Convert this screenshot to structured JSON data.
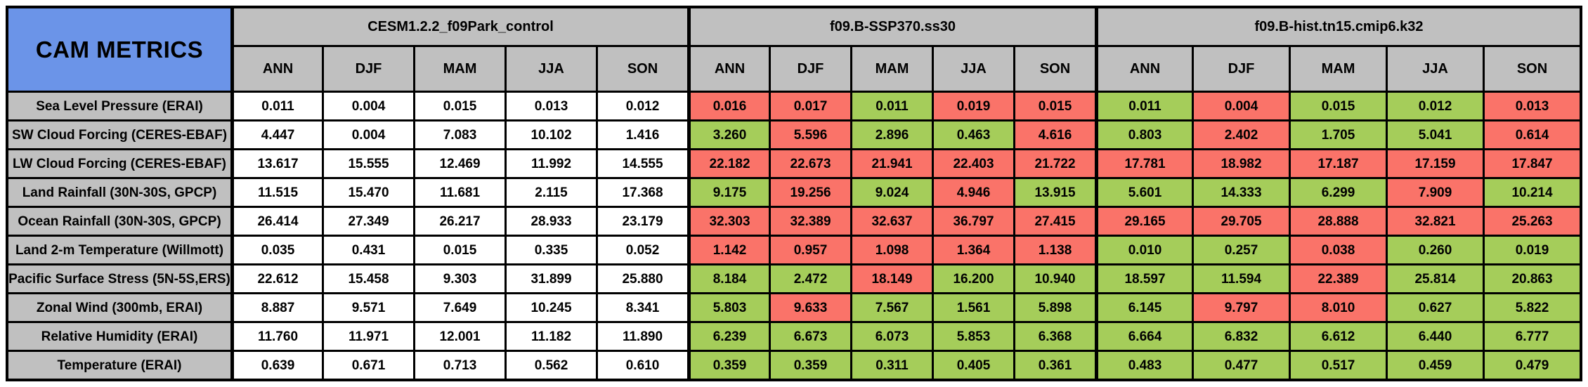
{
  "colors": {
    "title_bg": "#6B94E8",
    "header_bg": "#C0C0C0",
    "label_bg": "#C0C0C0",
    "neutral_cell": "#FFFFFF",
    "green_cell": "#A5CD5A",
    "red_cell": "#FA7369",
    "border": "#000000"
  },
  "chart_data": {
    "type": "table",
    "title": "CAM METRICS",
    "column_groups": [
      "CESM1.2.2_f09Park_control",
      "f09.B-SSP370.ss30",
      "f09.B-hist.tn15.cmip6.k32"
    ],
    "season_columns": [
      "ANN",
      "DJF",
      "MAM",
      "JJA",
      "SON"
    ],
    "cell_color_codes": {
      "w": "white",
      "g": "green",
      "r": "red"
    },
    "rows": [
      {
        "label": "Sea Level Pressure (ERAI)",
        "values": [
          [
            "0.011",
            "w"
          ],
          [
            "0.004",
            "w"
          ],
          [
            "0.015",
            "w"
          ],
          [
            "0.013",
            "w"
          ],
          [
            "0.012",
            "w"
          ],
          [
            "0.016",
            "r"
          ],
          [
            "0.017",
            "r"
          ],
          [
            "0.011",
            "g"
          ],
          [
            "0.019",
            "r"
          ],
          [
            "0.015",
            "r"
          ],
          [
            "0.011",
            "g"
          ],
          [
            "0.004",
            "r"
          ],
          [
            "0.015",
            "g"
          ],
          [
            "0.012",
            "g"
          ],
          [
            "0.013",
            "r"
          ]
        ]
      },
      {
        "label": "SW Cloud Forcing (CERES-EBAF)",
        "values": [
          [
            "4.447",
            "w"
          ],
          [
            "0.004",
            "w"
          ],
          [
            "7.083",
            "w"
          ],
          [
            "10.102",
            "w"
          ],
          [
            "1.416",
            "w"
          ],
          [
            "3.260",
            "g"
          ],
          [
            "5.596",
            "r"
          ],
          [
            "2.896",
            "g"
          ],
          [
            "0.463",
            "g"
          ],
          [
            "4.616",
            "r"
          ],
          [
            "0.803",
            "g"
          ],
          [
            "2.402",
            "r"
          ],
          [
            "1.705",
            "g"
          ],
          [
            "5.041",
            "g"
          ],
          [
            "0.614",
            "r"
          ]
        ]
      },
      {
        "label": "LW Cloud Forcing (CERES-EBAF)",
        "values": [
          [
            "13.617",
            "w"
          ],
          [
            "15.555",
            "w"
          ],
          [
            "12.469",
            "w"
          ],
          [
            "11.992",
            "w"
          ],
          [
            "14.555",
            "w"
          ],
          [
            "22.182",
            "r"
          ],
          [
            "22.673",
            "r"
          ],
          [
            "21.941",
            "r"
          ],
          [
            "22.403",
            "r"
          ],
          [
            "21.722",
            "r"
          ],
          [
            "17.781",
            "r"
          ],
          [
            "18.982",
            "r"
          ],
          [
            "17.187",
            "r"
          ],
          [
            "17.159",
            "r"
          ],
          [
            "17.847",
            "r"
          ]
        ]
      },
      {
        "label": "Land Rainfall (30N-30S, GPCP)",
        "values": [
          [
            "11.515",
            "w"
          ],
          [
            "15.470",
            "w"
          ],
          [
            "11.681",
            "w"
          ],
          [
            "2.115",
            "w"
          ],
          [
            "17.368",
            "w"
          ],
          [
            "9.175",
            "g"
          ],
          [
            "19.256",
            "r"
          ],
          [
            "9.024",
            "g"
          ],
          [
            "4.946",
            "r"
          ],
          [
            "13.915",
            "g"
          ],
          [
            "5.601",
            "g"
          ],
          [
            "14.333",
            "g"
          ],
          [
            "6.299",
            "g"
          ],
          [
            "7.909",
            "r"
          ],
          [
            "10.214",
            "g"
          ]
        ]
      },
      {
        "label": "Ocean Rainfall (30N-30S, GPCP)",
        "values": [
          [
            "26.414",
            "w"
          ],
          [
            "27.349",
            "w"
          ],
          [
            "26.217",
            "w"
          ],
          [
            "28.933",
            "w"
          ],
          [
            "23.179",
            "w"
          ],
          [
            "32.303",
            "r"
          ],
          [
            "32.389",
            "r"
          ],
          [
            "32.637",
            "r"
          ],
          [
            "36.797",
            "r"
          ],
          [
            "27.415",
            "r"
          ],
          [
            "29.165",
            "r"
          ],
          [
            "29.705",
            "r"
          ],
          [
            "28.888",
            "r"
          ],
          [
            "32.821",
            "r"
          ],
          [
            "25.263",
            "r"
          ]
        ]
      },
      {
        "label": "Land 2-m Temperature (Willmott)",
        "values": [
          [
            "0.035",
            "w"
          ],
          [
            "0.431",
            "w"
          ],
          [
            "0.015",
            "w"
          ],
          [
            "0.335",
            "w"
          ],
          [
            "0.052",
            "w"
          ],
          [
            "1.142",
            "r"
          ],
          [
            "0.957",
            "r"
          ],
          [
            "1.098",
            "r"
          ],
          [
            "1.364",
            "r"
          ],
          [
            "1.138",
            "r"
          ],
          [
            "0.010",
            "g"
          ],
          [
            "0.257",
            "g"
          ],
          [
            "0.038",
            "r"
          ],
          [
            "0.260",
            "g"
          ],
          [
            "0.019",
            "g"
          ]
        ]
      },
      {
        "label": "Pacific Surface Stress (5N-5S,ERS)",
        "values": [
          [
            "22.612",
            "w"
          ],
          [
            "15.458",
            "w"
          ],
          [
            "9.303",
            "w"
          ],
          [
            "31.899",
            "w"
          ],
          [
            "25.880",
            "w"
          ],
          [
            "8.184",
            "g"
          ],
          [
            "2.472",
            "g"
          ],
          [
            "18.149",
            "r"
          ],
          [
            "16.200",
            "g"
          ],
          [
            "10.940",
            "g"
          ],
          [
            "18.597",
            "g"
          ],
          [
            "11.594",
            "g"
          ],
          [
            "22.389",
            "r"
          ],
          [
            "25.814",
            "g"
          ],
          [
            "20.863",
            "g"
          ]
        ]
      },
      {
        "label": "Zonal Wind (300mb, ERAI)",
        "values": [
          [
            "8.887",
            "w"
          ],
          [
            "9.571",
            "w"
          ],
          [
            "7.649",
            "w"
          ],
          [
            "10.245",
            "w"
          ],
          [
            "8.341",
            "w"
          ],
          [
            "5.803",
            "g"
          ],
          [
            "9.633",
            "r"
          ],
          [
            "7.567",
            "g"
          ],
          [
            "1.561",
            "g"
          ],
          [
            "5.898",
            "g"
          ],
          [
            "6.145",
            "g"
          ],
          [
            "9.797",
            "r"
          ],
          [
            "8.010",
            "r"
          ],
          [
            "0.627",
            "g"
          ],
          [
            "5.822",
            "g"
          ]
        ]
      },
      {
        "label": "Relative Humidity (ERAI)",
        "values": [
          [
            "11.760",
            "w"
          ],
          [
            "11.971",
            "w"
          ],
          [
            "12.001",
            "w"
          ],
          [
            "11.182",
            "w"
          ],
          [
            "11.890",
            "w"
          ],
          [
            "6.239",
            "g"
          ],
          [
            "6.673",
            "g"
          ],
          [
            "6.073",
            "g"
          ],
          [
            "5.853",
            "g"
          ],
          [
            "6.368",
            "g"
          ],
          [
            "6.664",
            "g"
          ],
          [
            "6.832",
            "g"
          ],
          [
            "6.612",
            "g"
          ],
          [
            "6.440",
            "g"
          ],
          [
            "6.777",
            "g"
          ]
        ]
      },
      {
        "label": "Temperature (ERAI)",
        "values": [
          [
            "0.639",
            "w"
          ],
          [
            "0.671",
            "w"
          ],
          [
            "0.713",
            "w"
          ],
          [
            "0.562",
            "w"
          ],
          [
            "0.610",
            "w"
          ],
          [
            "0.359",
            "g"
          ],
          [
            "0.359",
            "g"
          ],
          [
            "0.311",
            "g"
          ],
          [
            "0.405",
            "g"
          ],
          [
            "0.361",
            "g"
          ],
          [
            "0.483",
            "g"
          ],
          [
            "0.477",
            "g"
          ],
          [
            "0.517",
            "g"
          ],
          [
            "0.459",
            "g"
          ],
          [
            "0.479",
            "g"
          ]
        ]
      }
    ]
  }
}
